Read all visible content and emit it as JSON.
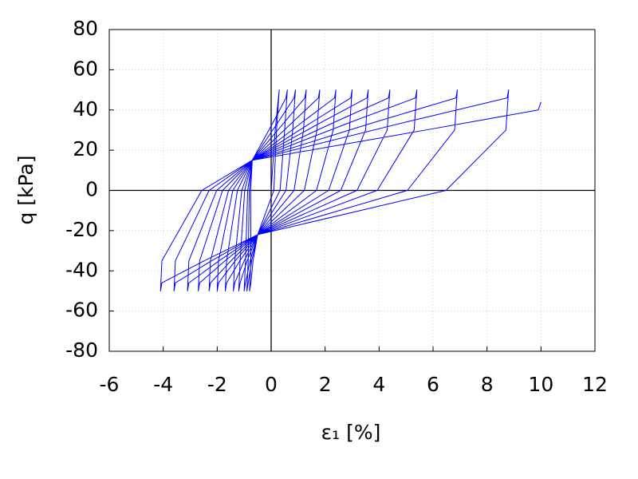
{
  "chart_data": {
    "type": "line",
    "xlabel": "ε₁ [%]",
    "ylabel": "q [kPa]",
    "xlim": [
      -6,
      12
    ],
    "ylim": [
      -80,
      80
    ],
    "xticks": [
      -6,
      -4,
      -2,
      0,
      2,
      4,
      6,
      8,
      10,
      12
    ],
    "yticks": [
      -80,
      -60,
      -40,
      -20,
      0,
      20,
      40,
      60,
      80
    ],
    "grid": true,
    "x": [
      0,
      0.15,
      0.3,
      0.2,
      0.1,
      -0.5,
      -0.67,
      -0.75,
      -0.8,
      -0.75,
      -0.76,
      -0.7,
      0.08,
      0.55,
      0.6,
      0.5,
      0.33,
      -0.5,
      -0.72,
      -0.85,
      -0.9,
      -0.85,
      -0.81,
      -0.7,
      0.26,
      0.85,
      0.9,
      0.8,
      0.55,
      -0.5,
      -0.78,
      -0.95,
      -1.0,
      -0.95,
      -0.87,
      -0.7,
      0.5,
      1.25,
      1.3,
      1.2,
      0.85,
      -0.5,
      -0.89,
      -1.15,
      -1.2,
      -1.15,
      -0.98,
      -0.7,
      0.8,
      1.75,
      1.8,
      1.7,
      1.23,
      -0.5,
      -1.0,
      -1.35,
      -1.4,
      -1.35,
      -1.09,
      -0.7,
      1.16,
      2.35,
      2.4,
      2.3,
      1.68,
      -0.5,
      -1.16,
      -1.65,
      -1.7,
      -1.65,
      -1.25,
      -0.7,
      1.52,
      2.95,
      3.0,
      2.9,
      2.13,
      -0.5,
      -1.33,
      -1.95,
      -2.0,
      -1.95,
      -1.42,
      -0.7,
      1.88,
      3.55,
      3.6,
      3.5,
      2.58,
      -0.5,
      -1.49,
      -2.25,
      -2.3,
      -2.25,
      -1.58,
      -0.7,
      2.36,
      4.35,
      4.4,
      4.3,
      3.18,
      -0.5,
      -1.71,
      -2.65,
      -2.7,
      -2.65,
      -1.8,
      -0.7,
      2.96,
      5.35,
      5.4,
      5.3,
      3.93,
      -0.5,
      -1.93,
      -3.05,
      -3.1,
      -3.05,
      -2.02,
      -0.7,
      3.86,
      6.85,
      6.9,
      6.8,
      5.05,
      -0.5,
      -2.21,
      -3.55,
      -3.6,
      -3.55,
      -2.3,
      -0.7,
      5.0,
      8.75,
      8.8,
      8.7,
      6.48,
      -0.5,
      -2.48,
      -4.05,
      -4.1,
      -4.05,
      -2.57,
      -0.7,
      5.72,
      9.9,
      10
    ],
    "series": [
      {
        "color": "#0000ff",
        "values": [
          0,
          30,
          50,
          30,
          0,
          -22,
          -35,
          -46,
          -50,
          -35,
          0,
          15,
          34,
          46,
          50,
          30,
          0,
          -22,
          -35,
          -46,
          -50,
          -35,
          0,
          15,
          34,
          46,
          50,
          30,
          0,
          -22,
          -35,
          -46,
          -50,
          -35,
          0,
          15,
          34,
          46,
          50,
          30,
          0,
          -22,
          -35,
          -46,
          -50,
          -35,
          0,
          15,
          34,
          46,
          50,
          30,
          0,
          -22,
          -35,
          -46,
          -50,
          -35,
          0,
          15,
          34,
          46,
          50,
          30,
          0,
          -22,
          -35,
          -46,
          -50,
          -35,
          0,
          15,
          34,
          46,
          50,
          30,
          0,
          -22,
          -35,
          -46,
          -50,
          -35,
          0,
          15,
          34,
          46,
          50,
          30,
          0,
          -22,
          -35,
          -46,
          -50,
          -35,
          0,
          15,
          34,
          46,
          50,
          30,
          0,
          -22,
          -35,
          -46,
          -50,
          -35,
          0,
          15,
          34,
          46,
          50,
          30,
          0,
          -22,
          -35,
          -46,
          -50,
          -35,
          0,
          15,
          34,
          46,
          50,
          30,
          0,
          -22,
          -35,
          -46,
          -50,
          -35,
          0,
          15,
          34,
          46,
          50,
          30,
          0,
          -22,
          -35,
          -46,
          -50,
          -35,
          0,
          15,
          30,
          40,
          44
        ]
      }
    ]
  }
}
